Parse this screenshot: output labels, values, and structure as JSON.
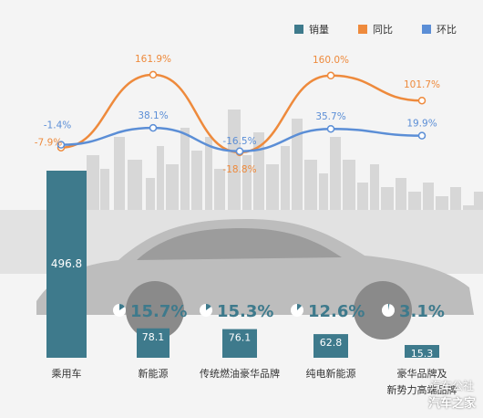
{
  "chart_data": {
    "type": "bar",
    "categories": [
      "乘用车",
      "新能源",
      "传统燃油豪华品牌",
      "纯电新能源",
      "豪华品牌及\n新势力高端品牌"
    ],
    "series": [
      {
        "name": "销量",
        "type": "bar",
        "values": [
          496.8,
          78.1,
          76.1,
          62.8,
          15.3
        ],
        "labels": [
          "496.8",
          "78.1",
          "76.1",
          "62.8",
          "15.3"
        ],
        "color": "#3e7a8c"
      },
      {
        "name": "同比",
        "type": "line",
        "values": [
          -7.9,
          161.9,
          -18.8,
          160.0,
          101.7
        ],
        "labels": [
          "-7.9%",
          "161.9%",
          "-18.8%",
          "160.0%",
          "101.7%"
        ],
        "color": "#ee8a3c"
      },
      {
        "name": "环比",
        "type": "line",
        "values": [
          -1.4,
          38.1,
          -16.5,
          35.7,
          19.9
        ],
        "labels": [
          "-1.4%",
          "38.1%",
          "-16.5%",
          "35.7%",
          "19.9%"
        ],
        "color": "#5b8ed6"
      }
    ],
    "shares": [
      null,
      15.7,
      15.3,
      12.6,
      3.1
    ],
    "share_labels": [
      "",
      "15.7%",
      "15.3%",
      "12.6%",
      "3.1%"
    ],
    "legend_position": "top-right",
    "grid": false
  },
  "legend": [
    {
      "label": "销量",
      "color": "#3e7a8c"
    },
    {
      "label": "同比",
      "color": "#ee8a3c"
    },
    {
      "label": "环比",
      "color": "#5b8ed6"
    }
  ],
  "watermark": {
    "line1": "汽车公社",
    "line2": "汽车之家"
  }
}
